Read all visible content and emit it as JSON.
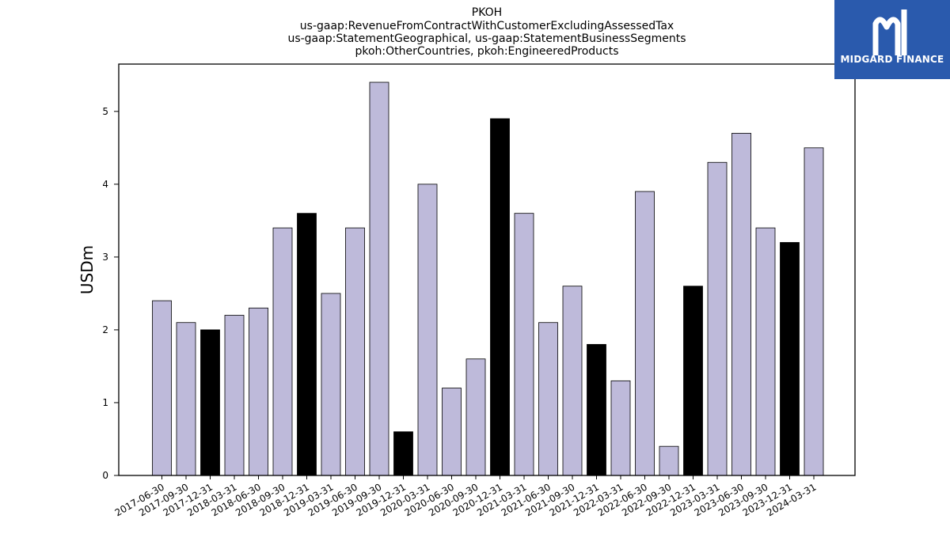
{
  "colors": {
    "bar_normal": "#bebada",
    "bar_highlight": "#000000",
    "logo_bg": "#2a5aad"
  },
  "logo": {
    "text": "MIDGARD FINANCE",
    "icon": "midgard-logo-icon"
  },
  "chart_data": {
    "type": "bar",
    "title_lines": [
      "PKOH",
      "us-gaap:RevenueFromContractWithCustomerExcludingAssessedTax",
      "us-gaap:StatementGeographical, us-gaap:StatementBusinessSegments",
      "pkoh:OtherCountries, pkoh:EngineeredProducts"
    ],
    "xlabel": "",
    "ylabel": "USDm",
    "ylim": [
      0,
      5.65
    ],
    "yticks": [
      0,
      1,
      2,
      3,
      4,
      5
    ],
    "grid": false,
    "categories": [
      "2017-06-30",
      "2017-09-30",
      "2017-12-31",
      "2018-03-31",
      "2018-06-30",
      "2018-09-30",
      "2018-12-31",
      "2019-03-31",
      "2019-06-30",
      "2019-09-30",
      "2019-12-31",
      "2020-03-31",
      "2020-06-30",
      "2020-09-30",
      "2020-12-31",
      "2021-03-31",
      "2021-06-30",
      "2021-09-30",
      "2021-12-31",
      "2022-03-31",
      "2022-06-30",
      "2022-09-30",
      "2022-12-31",
      "2023-03-31",
      "2023-06-30",
      "2023-09-30",
      "2023-12-31",
      "2024-03-31"
    ],
    "values": [
      2.4,
      2.1,
      2.0,
      2.2,
      2.3,
      3.4,
      3.6,
      2.5,
      3.4,
      5.4,
      0.6,
      4.0,
      1.2,
      1.6,
      4.9,
      3.6,
      2.1,
      2.6,
      1.8,
      1.3,
      3.9,
      0.4,
      2.6,
      4.3,
      4.7,
      3.4,
      3.2,
      4.5
    ],
    "highlighted": [
      false,
      false,
      true,
      false,
      false,
      false,
      true,
      false,
      false,
      false,
      true,
      false,
      false,
      false,
      true,
      false,
      false,
      false,
      true,
      false,
      false,
      false,
      true,
      false,
      false,
      false,
      true,
      false
    ]
  }
}
